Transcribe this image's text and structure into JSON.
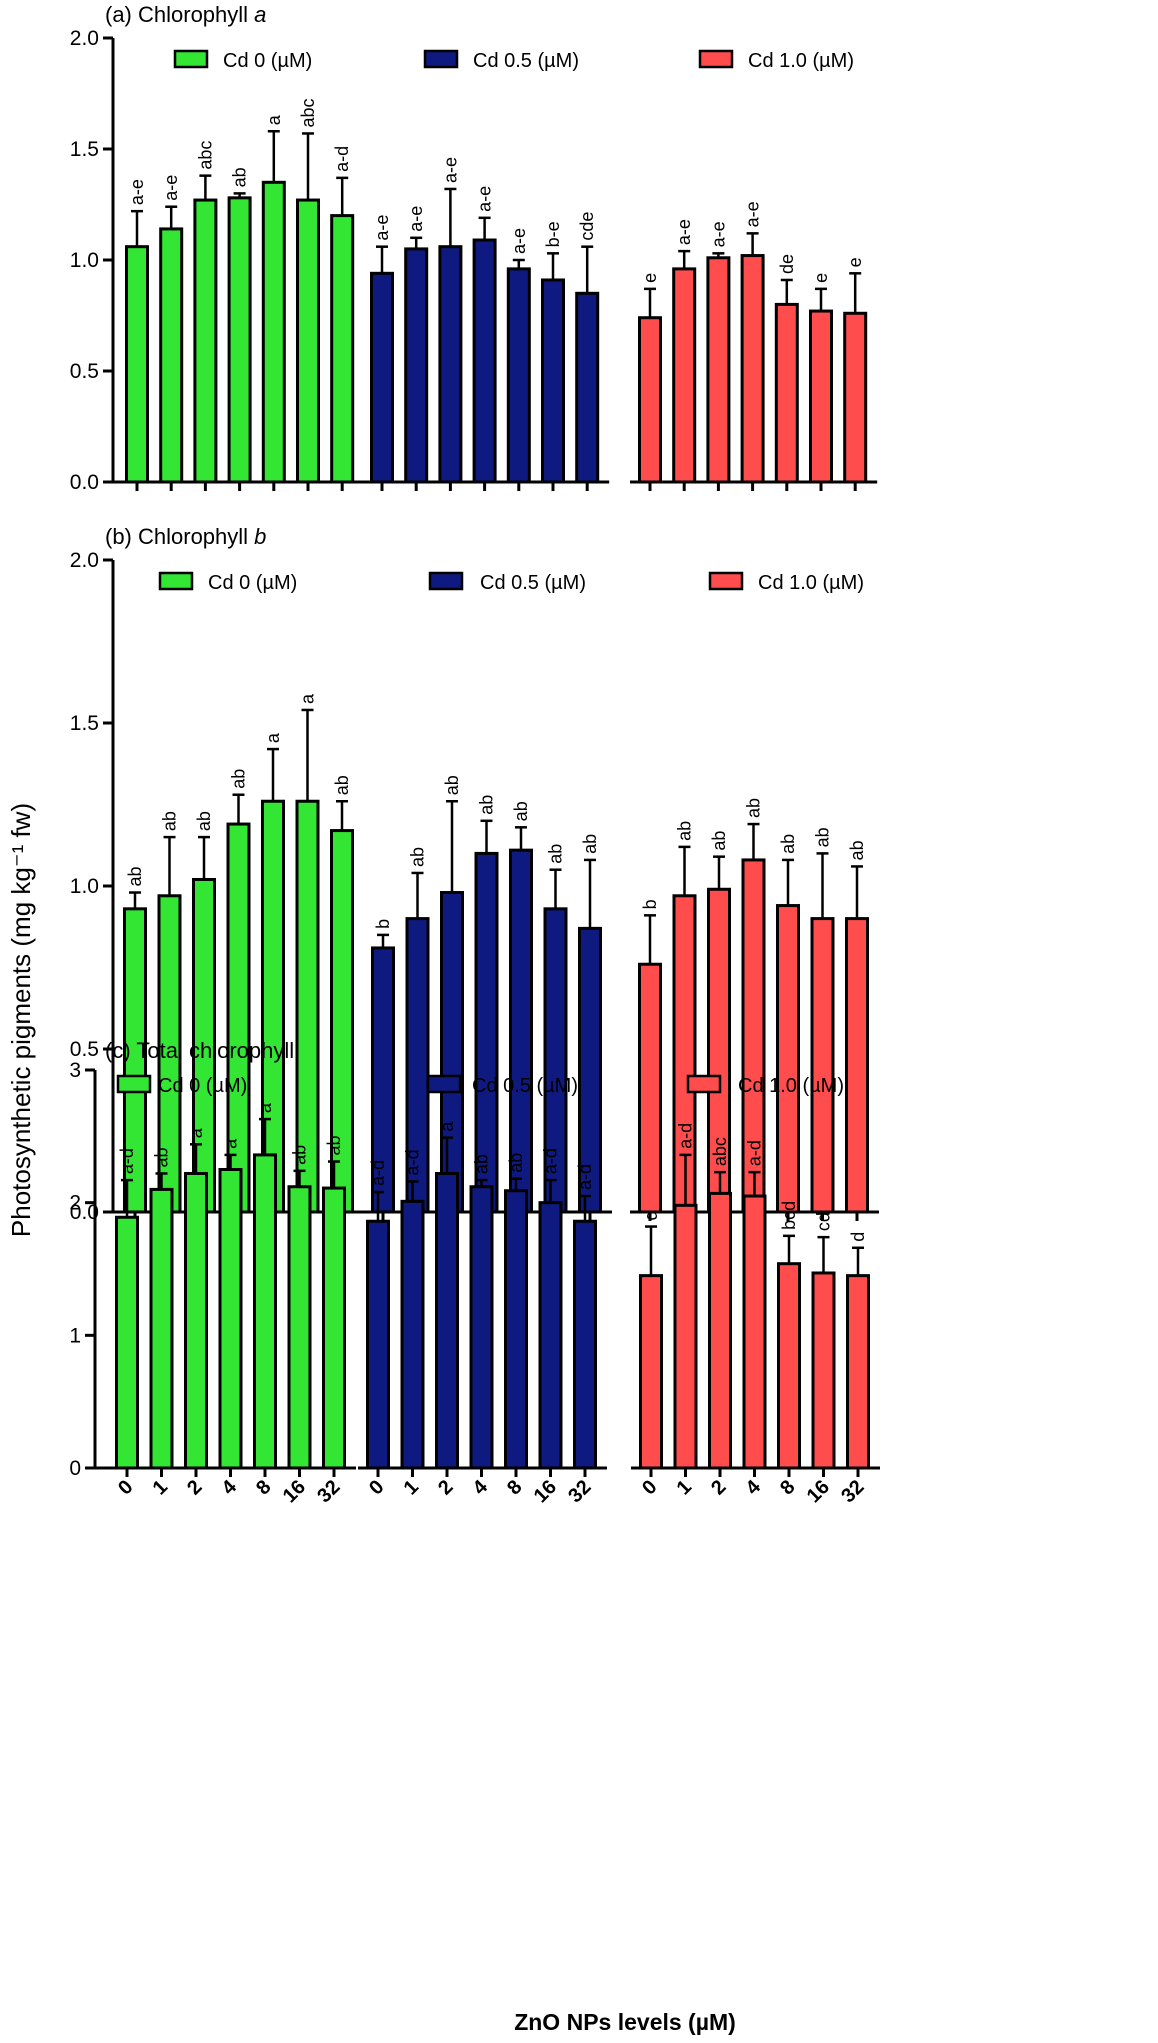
{
  "figure": {
    "y_axis_title": "Photosynthetic pigments (mg kg⁻¹ fw)",
    "x_axis_title": "ZnO NPs levels (µM)"
  },
  "colors": {
    "Cd 0": "#33e633",
    "Cd 0.5": "#0f1a80",
    "Cd 1.0": "#ff4d4d"
  },
  "chart_data": [
    {
      "type": "bar",
      "panel_label": "(a)",
      "title": "Chlorophyll",
      "title_italic_suffix": "a",
      "categories": [
        "0",
        "1",
        "2",
        "4",
        "8",
        "16",
        "32"
      ],
      "ylim": [
        0,
        2.0
      ],
      "yticks": [
        "0.0",
        "0.5",
        "1.0",
        "1.5",
        "2.0"
      ],
      "legend": [
        "Cd 0 (µM)",
        "Cd 0.5 (µM)",
        "Cd 1.0 (µM)"
      ],
      "legend_position": "top",
      "series": [
        {
          "name": "Cd 0 (µM)",
          "values": [
            1.06,
            1.14,
            1.27,
            1.28,
            1.35,
            1.27,
            1.2
          ],
          "errors": [
            0.16,
            0.1,
            0.11,
            0.02,
            0.23,
            0.3,
            0.17
          ],
          "letters": [
            "a-e",
            "a-e",
            "abc",
            "ab",
            "a",
            "abc",
            "a-d"
          ]
        },
        {
          "name": "Cd 0.5 (µM)",
          "values": [
            0.94,
            1.05,
            1.06,
            1.09,
            0.96,
            0.91,
            0.85
          ],
          "errors": [
            0.12,
            0.05,
            0.26,
            0.1,
            0.04,
            0.12,
            0.21
          ],
          "letters": [
            "a-e",
            "a-e",
            "a-e",
            "a-e",
            "a-e",
            "b-e",
            "cde"
          ]
        },
        {
          "name": "Cd 1.0 (µM)",
          "values": [
            0.74,
            0.96,
            1.01,
            1.02,
            0.8,
            0.77,
            0.76
          ],
          "errors": [
            0.13,
            0.08,
            0.02,
            0.1,
            0.11,
            0.1,
            0.18
          ],
          "letters": [
            "e",
            "a-e",
            "a-e",
            "a-e",
            "de",
            "e",
            "e"
          ]
        }
      ]
    },
    {
      "type": "bar",
      "panel_label": "(b)",
      "title": "Chlorophyll",
      "title_italic_suffix": "b",
      "categories": [
        "0",
        "1",
        "2",
        "4",
        "8",
        "16",
        "32"
      ],
      "ylim": [
        0,
        2.0
      ],
      "yticks": [
        "0.0",
        "0.5",
        "1.0",
        "1.5",
        "2.0"
      ],
      "legend": [
        "Cd 0 (µM)",
        "Cd 0.5 (µM)",
        "Cd 1.0 (µM)"
      ],
      "legend_position": "top",
      "series": [
        {
          "name": "Cd 0 (µM)",
          "values": [
            0.93,
            0.97,
            1.02,
            1.19,
            1.26,
            1.26,
            1.17
          ],
          "errors": [
            0.05,
            0.18,
            0.13,
            0.09,
            0.16,
            0.28,
            0.09
          ],
          "letters": [
            "ab",
            "ab",
            "ab",
            "ab",
            "a",
            "a",
            "ab"
          ]
        },
        {
          "name": "Cd 0.5 (µM)",
          "values": [
            0.81,
            0.9,
            0.98,
            1.1,
            1.11,
            0.93,
            0.87
          ],
          "errors": [
            0.04,
            0.14,
            0.28,
            0.1,
            0.07,
            0.12,
            0.21
          ],
          "letters": [
            "b",
            "ab",
            "ab",
            "ab",
            "ab",
            "ab",
            "ab"
          ]
        },
        {
          "name": "Cd 1.0 (µM)",
          "values": [
            0.76,
            0.97,
            0.99,
            1.08,
            0.94,
            0.9,
            0.9
          ],
          "errors": [
            0.15,
            0.15,
            0.1,
            0.11,
            0.14,
            0.2,
            0.16
          ],
          "letters": [
            "b",
            "ab",
            "ab",
            "ab",
            "ab",
            "ab",
            "ab"
          ]
        }
      ]
    },
    {
      "type": "bar",
      "panel_label": "(c)",
      "title": "Total chlorophyll",
      "title_italic_suffix": "",
      "categories": [
        "0",
        "1",
        "2",
        "4",
        "8",
        "16",
        "32"
      ],
      "ylim": [
        0,
        3
      ],
      "yticks": [
        "0",
        "1",
        "2",
        "3"
      ],
      "legend": [
        "Cd 0 (µM)",
        "Cd 0.5 (µM)",
        "Cd 1.0 (µM)"
      ],
      "legend_position": "top",
      "series": [
        {
          "name": "Cd 0 (µM)",
          "values": [
            1.89,
            2.1,
            2.22,
            2.25,
            2.36,
            2.12,
            2.11
          ],
          "errors": [
            0.28,
            0.12,
            0.22,
            0.11,
            0.27,
            0.12,
            0.2
          ],
          "letters": [
            "a-d",
            "ab",
            "a",
            "a",
            "a",
            "ab",
            "ab"
          ]
        },
        {
          "name": "Cd 0.5 (µM)",
          "values": [
            1.86,
            2.01,
            2.22,
            2.12,
            2.09,
            2.0,
            1.86
          ],
          "errors": [
            0.22,
            0.15,
            0.27,
            0.05,
            0.09,
            0.17,
            0.19
          ],
          "letters": [
            "a-d",
            "a-d",
            "a",
            "ab",
            "ab",
            "a-d",
            "a-d"
          ]
        },
        {
          "name": "Cd 1.0 (µM)",
          "values": [
            1.45,
            1.98,
            2.07,
            2.05,
            1.54,
            1.47,
            1.45
          ],
          "errors": [
            0.37,
            0.38,
            0.16,
            0.18,
            0.21,
            0.27,
            0.21
          ],
          "letters": [
            "d",
            "a-d",
            "abc",
            "a-d",
            "bcd",
            "cd",
            "d"
          ]
        }
      ]
    }
  ]
}
